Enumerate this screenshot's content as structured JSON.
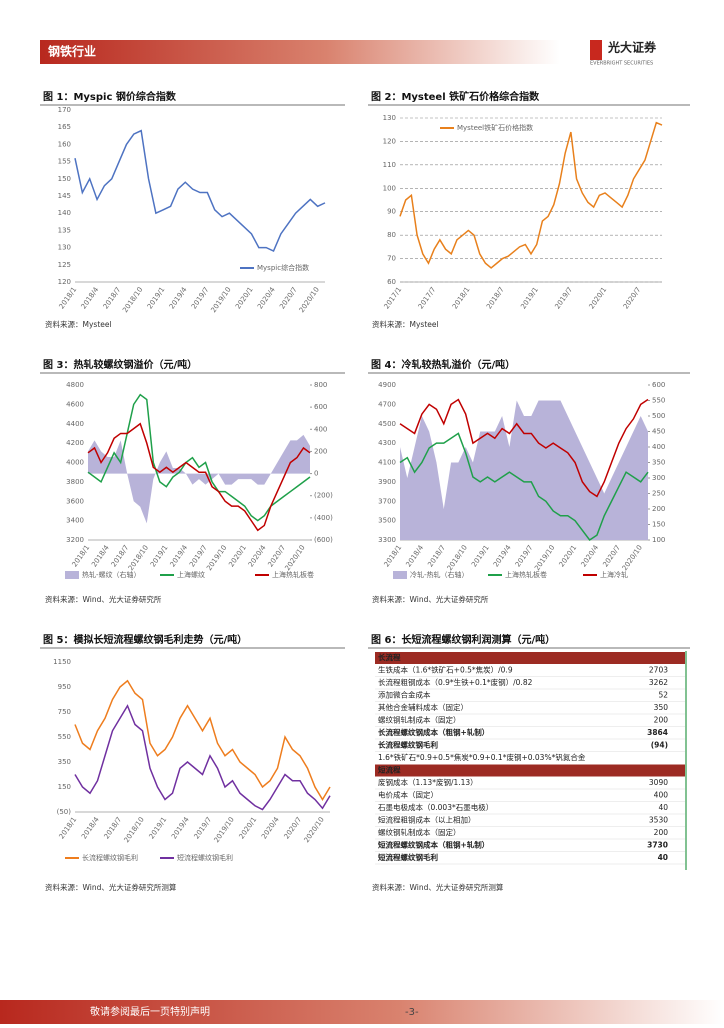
{
  "header": {
    "section": "钢铁行业",
    "logo": "光大证券",
    "logo_en": "EVERBRIGHT SECURITIES"
  },
  "chart_data": [
    {
      "type": "line",
      "title": "图 1：Myspic 钢价综合指数",
      "legend": "lower right",
      "grid": false,
      "categories": [
        "2018/1",
        null,
        null,
        "2018/4",
        null,
        null,
        "2018/7",
        null,
        null,
        "2018/10",
        null,
        null,
        "2019/1",
        null,
        null,
        "2019/4",
        null,
        null,
        "2019/7",
        null,
        null,
        "2019/10",
        null,
        null,
        "2020/1",
        null,
        null,
        "2020/4",
        null,
        null,
        "2020/7",
        null,
        null,
        "2020/10",
        null
      ],
      "ylim": [
        120,
        170
      ],
      "yticks": [
        120,
        125,
        130,
        135,
        140,
        145,
        150,
        155,
        160,
        165,
        170
      ],
      "series": [
        {
          "name": "Myspic综合指数",
          "color": "#4e73c2",
          "values": [
            156,
            146,
            150,
            144,
            148,
            150,
            155,
            160,
            163,
            164,
            150,
            140,
            141,
            142,
            147,
            149,
            147,
            146,
            146,
            141,
            139,
            140,
            138,
            136,
            134,
            130,
            130,
            129,
            134,
            137,
            140,
            142,
            144,
            142,
            143
          ]
        }
      ]
    },
    {
      "type": "line",
      "title": "图 2：Mysteel 铁矿石价格综合指数",
      "legend": "upper left",
      "grid": true,
      "categories": [
        "2017/1",
        null,
        null,
        null,
        null,
        null,
        "2017/7",
        null,
        null,
        null,
        null,
        null,
        "2018/1",
        null,
        null,
        null,
        null,
        null,
        "2018/7",
        null,
        null,
        null,
        null,
        null,
        "2019/1",
        null,
        null,
        null,
        null,
        null,
        "2019/7",
        null,
        null,
        null,
        null,
        null,
        "2020/1",
        null,
        null,
        null,
        null,
        null,
        "2020/7",
        null,
        null,
        null,
        null
      ],
      "ylim": [
        60,
        130
      ],
      "yticks": [
        60,
        70,
        80,
        90,
        100,
        110,
        120,
        130
      ],
      "series": [
        {
          "name": "Mysteel铁矿石价格指数",
          "color": "#e8801c",
          "values": [
            88,
            95,
            97,
            80,
            72,
            68,
            74,
            78,
            74,
            72,
            78,
            80,
            82,
            80,
            72,
            68,
            66,
            68,
            70,
            71,
            73,
            75,
            76,
            72,
            76,
            86,
            88,
            93,
            102,
            115,
            124,
            104,
            98,
            94,
            92,
            97,
            98,
            96,
            94,
            92,
            97,
            104,
            108,
            112,
            120,
            128,
            127
          ]
        }
      ]
    },
    {
      "type": "line",
      "title": "图 3：热轧较螺纹钢溢价（元/吨）",
      "legend": "bottom",
      "grid": false,
      "categories": [
        "2018/1",
        null,
        null,
        "2018/4",
        null,
        null,
        "2018/7",
        null,
        null,
        "2018/10",
        null,
        null,
        "2019/1",
        null,
        null,
        "2019/4",
        null,
        null,
        "2019/7",
        null,
        null,
        "2019/10",
        null,
        null,
        "2020/1",
        null,
        null,
        "2020/4",
        null,
        null,
        "2020/7",
        null,
        null,
        "2020/10",
        null
      ],
      "ylim": [
        3200,
        4800
      ],
      "yticks": [
        3200,
        3400,
        3600,
        3800,
        4000,
        4200,
        4400,
        4600,
        4800
      ],
      "y2lim": [
        -600,
        800
      ],
      "y2ticks": [
        {
          "value": -600,
          "label": "(600)"
        },
        {
          "value": -400,
          "label": "(400)"
        },
        {
          "value": -200,
          "label": "(200)"
        },
        0,
        200,
        400,
        600,
        800
      ],
      "series": [
        {
          "name": "热轧-螺纹（右轴）",
          "type": "area",
          "axis": "y2",
          "color": "#b8b3d9",
          "values": [
            200,
            300,
            200,
            150,
            150,
            300,
            0,
            -250,
            -300,
            -450,
            -50,
            100,
            200,
            50,
            50,
            0,
            -100,
            -50,
            -100,
            -50,
            0,
            -100,
            -100,
            -50,
            -50,
            -50,
            -100,
            -100,
            0,
            100,
            200,
            300,
            300,
            350,
            250
          ]
        },
        {
          "name": "上海螺纹",
          "color": "#1fa04a",
          "values": [
            3900,
            3850,
            3800,
            3950,
            4100,
            4000,
            4300,
            4600,
            4700,
            4650,
            4000,
            3800,
            3750,
            3850,
            3900,
            4000,
            4050,
            3950,
            4000,
            3800,
            3700,
            3700,
            3650,
            3600,
            3550,
            3450,
            3400,
            3450,
            3550,
            3600,
            3650,
            3700,
            3750,
            3800,
            3850
          ]
        },
        {
          "name": "上海热轧板卷",
          "color": "#c00000",
          "values": [
            4100,
            4150,
            4000,
            4100,
            4250,
            4300,
            4300,
            4350,
            4400,
            4200,
            3950,
            3900,
            3950,
            3900,
            3950,
            4000,
            3950,
            3900,
            3900,
            3750,
            3700,
            3600,
            3550,
            3550,
            3500,
            3400,
            3300,
            3350,
            3550,
            3700,
            3850,
            4000,
            4050,
            4150,
            4100
          ]
        }
      ]
    },
    {
      "type": "line",
      "title": "图 4：冷轧较热轧溢价（元/吨）",
      "legend": "bottom",
      "grid": false,
      "categories": [
        "2018/1",
        null,
        null,
        "2018/4",
        null,
        null,
        "2018/7",
        null,
        null,
        "2018/10",
        null,
        null,
        "2019/1",
        null,
        null,
        "2019/4",
        null,
        null,
        "2019/7",
        null,
        null,
        "2019/10",
        null,
        null,
        "2020/1",
        null,
        null,
        "2020/4",
        null,
        null,
        "2020/7",
        null,
        null,
        "2020/10",
        null
      ],
      "ylim": [
        3300,
        4900
      ],
      "yticks": [
        3300,
        3500,
        3700,
        3900,
        4100,
        4300,
        4500,
        4700,
        4900
      ],
      "y2lim": [
        100,
        600
      ],
      "y2ticks": [
        100,
        150,
        200,
        250,
        300,
        350,
        400,
        450,
        500,
        550,
        600
      ],
      "series": [
        {
          "name": "冷轧-热轧（右轴）",
          "type": "area",
          "axis": "y2",
          "color": "#b8b3d9",
          "values": [
            400,
            300,
            400,
            500,
            450,
            350,
            200,
            350,
            350,
            400,
            350,
            450,
            450,
            450,
            500,
            400,
            550,
            500,
            500,
            550,
            550,
            550,
            550,
            500,
            450,
            400,
            350,
            300,
            250,
            300,
            350,
            400,
            450,
            500,
            450
          ]
        },
        {
          "name": "上海热轧板卷",
          "color": "#1fa04a",
          "values": [
            4100,
            4150,
            4000,
            4100,
            4250,
            4300,
            4300,
            4350,
            4400,
            4200,
            3950,
            3900,
            3950,
            3900,
            3950,
            4000,
            3950,
            3900,
            3900,
            3750,
            3700,
            3600,
            3550,
            3550,
            3500,
            3400,
            3300,
            3350,
            3550,
            3700,
            3850,
            4000,
            3950,
            3900,
            4000
          ]
        },
        {
          "name": "上海冷轧",
          "color": "#c00000",
          "values": [
            4500,
            4450,
            4400,
            4600,
            4700,
            4650,
            4500,
            4700,
            4750,
            4600,
            4300,
            4350,
            4400,
            4350,
            4450,
            4400,
            4500,
            4400,
            4400,
            4300,
            4250,
            4300,
            4250,
            4200,
            4100,
            3900,
            3800,
            3750,
            3900,
            4100,
            4300,
            4450,
            4550,
            4700,
            4750
          ]
        }
      ]
    },
    {
      "type": "line",
      "title": "图 5：模拟长短流程螺纹钢毛利走势（元/吨）",
      "legend": "bottom",
      "grid": false,
      "categories": [
        "2018/1",
        null,
        null,
        "2018/4",
        null,
        null,
        "2018/7",
        null,
        null,
        "2018/10",
        null,
        null,
        "2019/1",
        null,
        null,
        "2019/4",
        null,
        null,
        "2019/7",
        null,
        null,
        "2019/10",
        null,
        null,
        "2020/1",
        null,
        null,
        "2020/4",
        null,
        null,
        "2020/7",
        null,
        null,
        "2020/10",
        null
      ],
      "ylim": [
        -50,
        1150
      ],
      "yticks": [
        {
          "value": -50,
          "label": "(50)"
        },
        150,
        350,
        550,
        750,
        950,
        1150
      ],
      "series": [
        {
          "name": "长流程螺纹钢毛利",
          "color": "#ee7d1e",
          "values": [
            650,
            500,
            450,
            600,
            700,
            850,
            950,
            1000,
            900,
            850,
            500,
            400,
            450,
            550,
            700,
            800,
            700,
            600,
            700,
            500,
            400,
            450,
            350,
            300,
            250,
            150,
            200,
            300,
            550,
            450,
            400,
            300,
            150,
            50,
            150
          ]
        },
        {
          "name": "短流程螺纹钢毛利",
          "color": "#7030a0",
          "values": [
            250,
            150,
            100,
            200,
            400,
            600,
            700,
            800,
            650,
            600,
            300,
            150,
            50,
            100,
            300,
            350,
            300,
            250,
            400,
            300,
            150,
            200,
            100,
            50,
            0,
            -30,
            50,
            150,
            250,
            200,
            200,
            100,
            50,
            -20,
            80
          ]
        }
      ]
    }
  ],
  "table": {
    "title": "图 6：长短流程螺纹钢利润测算（元/吨）",
    "sections": [
      {
        "name": "长流程",
        "rows": [
          [
            "生铁成本（1.6*铁矿石+0.5*焦炭）/0.9",
            "2703"
          ],
          [
            "长流程粗钢成本（0.9*生铁+0.1*废钢）/0.82",
            "3262"
          ],
          [
            "添加微合金成本",
            "52"
          ],
          [
            "其他合金辅料成本（固定）",
            "350"
          ],
          [
            "螺纹钢轧制成本（固定）",
            "200"
          ],
          [
            "长流程螺纹钢成本（粗钢+轧制）",
            "3864"
          ],
          [
            "长流程螺纹钢毛利",
            "(94)"
          ]
        ],
        "note": "1.6*铁矿石*0.9+0.5*焦炭*0.9+0.1*废钢+0.03%*钒氮合金"
      },
      {
        "name": "短流程",
        "rows": [
          [
            "废钢成本（1.13*废钢/1.13）",
            "3090"
          ],
          [
            "电价成本（固定）",
            "400"
          ],
          [
            "石墨电极成本（0.003*石墨电极）",
            "40"
          ],
          [
            "短流程粗钢成本（以上相加）",
            "3530"
          ],
          [
            "螺纹钢轧制成本（固定）",
            "200"
          ],
          [
            "短流程螺纹钢成本（粗钢+轧制）",
            "3730"
          ],
          [
            "短流程螺纹钢毛利",
            "40"
          ]
        ]
      }
    ]
  },
  "sources": [
    "资料来源：Mysteel",
    "资料来源：Mysteel",
    "资料来源：Wind、光大证券研究所",
    "资料来源：Wind、光大证券研究所",
    "资料来源：Wind、光大证券研究所测算",
    "资料来源：Wind、光大证券研究所测算"
  ],
  "footer": {
    "note": "敬请参阅最后一页特别声明",
    "page": "-3-"
  }
}
